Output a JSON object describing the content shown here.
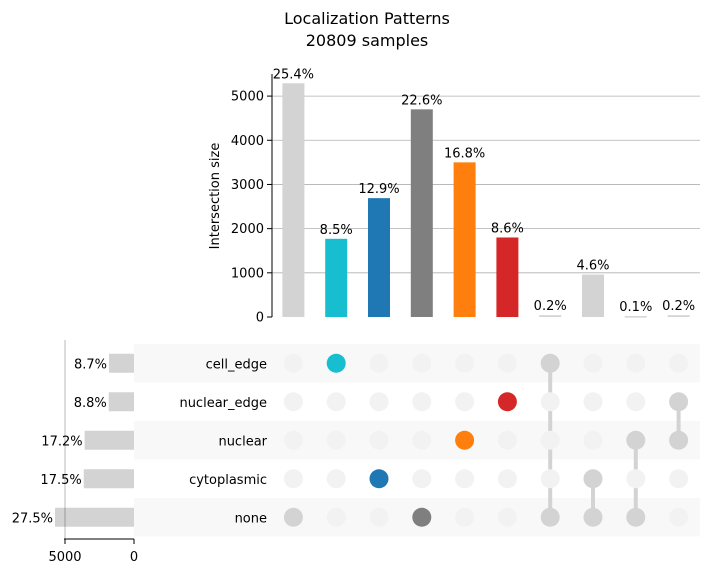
{
  "chart_data": {
    "type": "upset",
    "title": "Localization Patterns",
    "subtitle": "20809 samples",
    "ylabel": "Intersection size",
    "ylim": [
      0,
      5500
    ],
    "yticks": [
      0,
      1000,
      2000,
      3000,
      4000,
      5000
    ],
    "grid": true,
    "sets": [
      {
        "name": "cell_edge",
        "size": 1810,
        "label": "8.7%"
      },
      {
        "name": "nuclear_edge",
        "size": 1831,
        "label": "8.8%"
      },
      {
        "name": "nuclear",
        "size": 3579,
        "label": "17.2%"
      },
      {
        "name": "cytoplasmic",
        "size": 3642,
        "label": "17.5%"
      },
      {
        "name": "none",
        "size": 5722,
        "label": "27.5%"
      }
    ],
    "set_size_ticks": [
      5000,
      0
    ],
    "intersections": [
      {
        "members": [
          "none"
        ],
        "value": 5290,
        "label": "25.4%",
        "color": "#d3d3d3"
      },
      {
        "members": [
          "cell_edge"
        ],
        "value": 1770,
        "label": "8.5%",
        "color": "#17becf"
      },
      {
        "members": [
          "cytoplasmic"
        ],
        "value": 2690,
        "label": "12.9%",
        "color": "#1f77b4"
      },
      {
        "members": [
          "none"
        ],
        "value": 4700,
        "label": "22.6%",
        "color": "#7f7f7f"
      },
      {
        "members": [
          "nuclear"
        ],
        "value": 3500,
        "label": "16.8%",
        "color": "#ff7f0e"
      },
      {
        "members": [
          "nuclear_edge"
        ],
        "value": 1800,
        "label": "8.6%",
        "color": "#d62728"
      },
      {
        "members": [
          "cell_edge",
          "none"
        ],
        "value": 40,
        "label": "0.2%",
        "color": "#d3d3d3"
      },
      {
        "members": [
          "cytoplasmic",
          "none"
        ],
        "value": 960,
        "label": "4.6%",
        "color": "#d3d3d3"
      },
      {
        "members": [
          "nuclear",
          "none"
        ],
        "value": 20,
        "label": "0.1%",
        "color": "#d3d3d3"
      },
      {
        "members": [
          "nuclear_edge",
          "nuclear"
        ],
        "value": 40,
        "label": "0.2%",
        "color": "#d3d3d3"
      }
    ],
    "colors": {
      "inactive_dot": "#f2f2f2",
      "connector": "#d3d3d3",
      "set_bar": "#d3d3d3",
      "row_shade": "#f8f8f8",
      "grid": "#b0b0b0"
    }
  }
}
